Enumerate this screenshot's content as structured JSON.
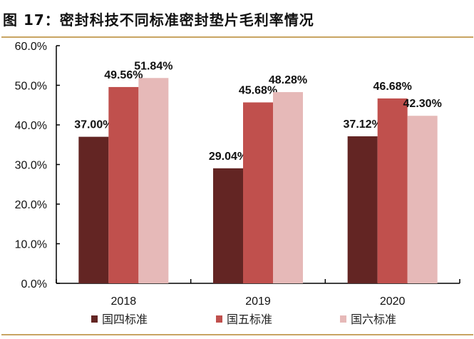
{
  "title": "图 17：密封科技不同标准密封垫片毛利率情况",
  "chart_data": {
    "type": "bar",
    "title": "图 17：密封科技不同标准密封垫片毛利率情况",
    "categories": [
      "2018",
      "2019",
      "2020"
    ],
    "series": [
      {
        "name": "国四标准",
        "values": [
          37.0,
          29.04,
          37.12
        ],
        "labels": [
          "37.00%",
          "29.04%",
          "37.12%"
        ],
        "color": "#632523"
      },
      {
        "name": "国五标准",
        "values": [
          49.56,
          45.68,
          46.68
        ],
        "labels": [
          "49.56%",
          "45.68%",
          "46.68%"
        ],
        "color": "#c0504d"
      },
      {
        "name": "国六标准",
        "values": [
          51.84,
          48.28,
          42.3
        ],
        "labels": [
          "51.84%",
          "48.28%",
          "42.30%"
        ],
        "color": "#e6b9b8"
      }
    ],
    "yticks": [
      "0.0%",
      "10.0%",
      "20.0%",
      "30.0%",
      "40.0%",
      "50.0%",
      "60.0%"
    ],
    "ylim": [
      0,
      60
    ],
    "xlabel": "",
    "ylabel": "",
    "grid": false,
    "legend": "bottom"
  }
}
